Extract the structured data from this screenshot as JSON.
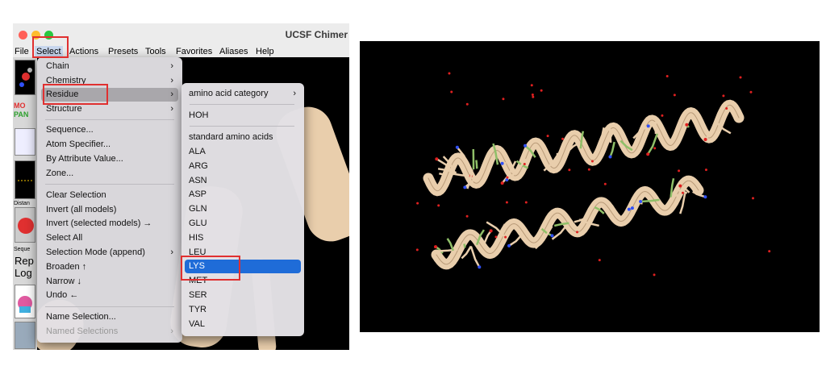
{
  "window": {
    "title": "UCSF Chimer"
  },
  "menubar": {
    "items": [
      "File",
      "Select",
      "Actions",
      "Presets",
      "Tools",
      "Favorites",
      "Aliases",
      "Help"
    ],
    "active": "Select"
  },
  "toolbar": {
    "labels": [
      "MO",
      "PAN",
      "Distan",
      "Seque"
    ],
    "words": [
      "Rep",
      "Log"
    ]
  },
  "select_menu": {
    "items": [
      {
        "label": "Chain",
        "submenu": true
      },
      {
        "label": "Chemistry",
        "submenu": true
      },
      {
        "label": "Residue",
        "submenu": true,
        "highlighted": true
      },
      {
        "label": "Structure",
        "submenu": true
      },
      {
        "label": "Sequence..."
      },
      {
        "label": "Atom Specifier..."
      },
      {
        "label": "By Attribute Value..."
      },
      {
        "label": "Zone..."
      },
      {
        "label": "Clear Selection"
      },
      {
        "label": "Invert (all models)"
      },
      {
        "label": "Invert (selected models) →"
      },
      {
        "label": "Select All"
      },
      {
        "label": "Selection Mode (append)",
        "submenu": true
      },
      {
        "label": "Broaden ↑"
      },
      {
        "label": "Narrow ↓"
      },
      {
        "label": "Undo ←"
      },
      {
        "label": "Name Selection..."
      },
      {
        "label": "Named Selections",
        "submenu": true,
        "disabled": true
      }
    ]
  },
  "residue_submenu": {
    "items": [
      {
        "label": "amino acid category",
        "submenu": true
      },
      {
        "label": "HOH"
      },
      {
        "label": "standard amino acids"
      },
      {
        "label": "ALA"
      },
      {
        "label": "ARG"
      },
      {
        "label": "ASN"
      },
      {
        "label": "ASP"
      },
      {
        "label": "GLN"
      },
      {
        "label": "GLU"
      },
      {
        "label": "HIS"
      },
      {
        "label": "LEU"
      },
      {
        "label": "LYS",
        "selected": true
      },
      {
        "label": "MET"
      },
      {
        "label": "SER"
      },
      {
        "label": "TYR"
      },
      {
        "label": "VAL"
      }
    ]
  },
  "icons": {
    "submenu_arrow": "chevron-right-icon"
  },
  "colors": {
    "highlight_selection": "#1f6cd8",
    "annotation_box": "#e03030",
    "helix_ribbon": "#e9ceac",
    "lysine_sidechain": "#8fbf68",
    "water_oxygen": "#e02020",
    "nitrogen": "#3050f8"
  }
}
